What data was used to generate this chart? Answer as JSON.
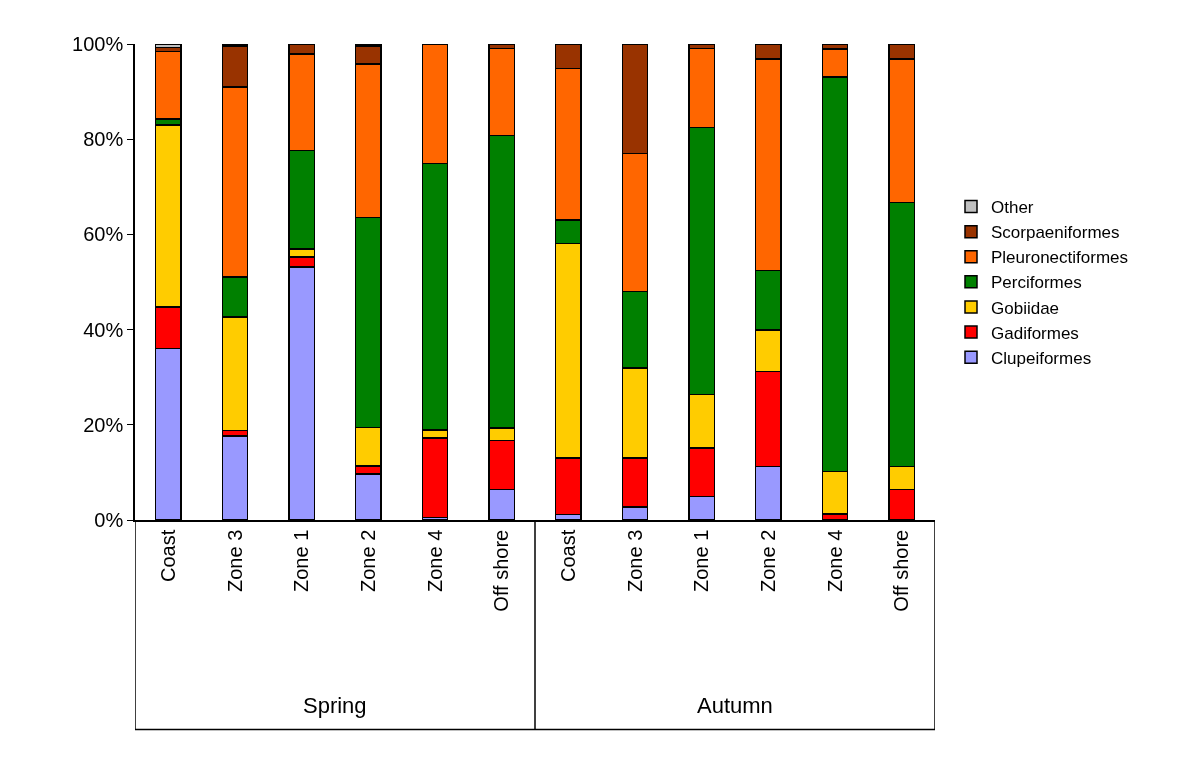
{
  "chart_data": {
    "type": "bar",
    "stacked": true,
    "categories": [
      "Coast",
      "Zone 3",
      "Zone 1",
      "Zone 2",
      "Zone 4",
      "Off shore",
      "Coast",
      "Zone 3",
      "Zone 1",
      "Zone 2",
      "Zone 4",
      "Off shore"
    ],
    "annotations": [
      "Spring",
      "Autumn"
    ],
    "series": [
      {
        "name": "Clupeiformes",
        "color": "#9999ff",
        "values": [
          36,
          17.7,
          53.2,
          9.7,
          0.5,
          6.4,
          1.2,
          2.7,
          4.9,
          11.2,
          null,
          null
        ]
      },
      {
        "name": "Gadiformes",
        "color": "#ff0000",
        "values": [
          8.7,
          1.1,
          2.1,
          1.6,
          16.7,
          10.3,
          11.8,
          10.3,
          10.2,
          20,
          1.3,
          6.4
        ]
      },
      {
        "name": "Gobiidae",
        "color": "#ffcc00",
        "values": [
          38.3,
          23.8,
          1.6,
          8.1,
          1.7,
          2.6,
          45.1,
          18.9,
          11.3,
          8.7,
          8.9,
          4.8
        ]
      },
      {
        "name": "Perciformes",
        "color": "#008000",
        "values": [
          1.2,
          8.5,
          20.7,
          44.2,
          56,
          61.5,
          4.9,
          16.1,
          56.1,
          12.5,
          82.9,
          55.5
        ]
      },
      {
        "name": "Pleuronectiformes",
        "color": "#ff6600",
        "values": [
          14.2,
          39.9,
          20.3,
          32.2,
          25.1,
          18.3,
          31.9,
          29,
          16.6,
          44.4,
          5.8,
          30.1
        ]
      },
      {
        "name": "Scorpaeniformes",
        "color": "#993300",
        "values": [
          0.9,
          8.6,
          2.1,
          3.8,
          null,
          0.9,
          5.1,
          23,
          0.9,
          3.2,
          1.1,
          3.2
        ]
      },
      {
        "name": "Other",
        "color": "#c0c0c0",
        "values": [
          0.7,
          0.4,
          null,
          0.4,
          null,
          null,
          null,
          null,
          null,
          null,
          null,
          null
        ]
      }
    ],
    "ylim": [
      0,
      100
    ],
    "yticks": [
      {
        "value": 0,
        "label": "0%"
      },
      {
        "value": 20,
        "label": "20%"
      },
      {
        "value": 40,
        "label": "40%"
      },
      {
        "value": 60,
        "label": "60%"
      },
      {
        "value": 80,
        "label": "80%"
      },
      {
        "value": 100,
        "label": "100%"
      }
    ],
    "legend": "right"
  }
}
